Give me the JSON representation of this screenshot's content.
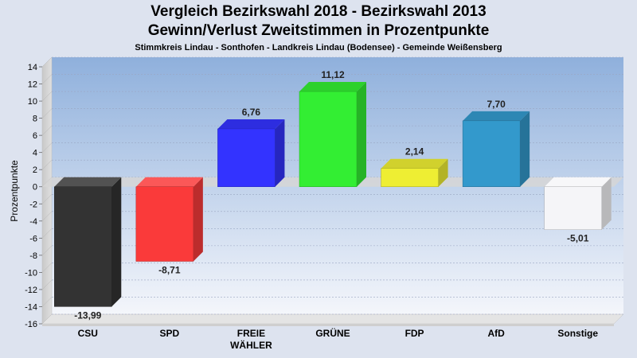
{
  "header": {
    "title_line1": "Vergleich Bezirkswahl 2018 - Bezirkswahl 2013",
    "title_line2": "Gewinn/Verlust Zweitstimmen in Prozentpunkte",
    "subtitle": "Stimmkreis Lindau - Sonthofen - Landkreis Lindau (Bodensee) - Gemeinde Weißensberg"
  },
  "chart_data": {
    "type": "bar",
    "title": "Vergleich Bezirkswahl 2018 - Bezirkswahl 2013 / Gewinn/Verlust Zweitstimmen in Prozentpunkte",
    "subtitle": "Stimmkreis Lindau - Sonthofen - Landkreis Lindau (Bodensee) - Gemeinde Weißensberg",
    "xlabel": "",
    "ylabel": "Prozentpunkte",
    "ylim": [
      -16,
      14
    ],
    "yticks": [
      14,
      12,
      10,
      8,
      6,
      4,
      2,
      0,
      -2,
      -4,
      -6,
      -8,
      -10,
      -12,
      -14,
      -16
    ],
    "grid": true,
    "categories": [
      "CSU",
      "SPD",
      "FREIE WÄHLER",
      "GRÜNE",
      "FDP",
      "AfD",
      "Sonstige"
    ],
    "category_lines": [
      [
        "CSU"
      ],
      [
        "SPD"
      ],
      [
        "FREIE",
        "WÄHLER"
      ],
      [
        "GRÜNE"
      ],
      [
        "FDP"
      ],
      [
        "AfD"
      ],
      [
        "Sonstige"
      ]
    ],
    "values": [
      -13.99,
      -8.71,
      6.76,
      11.12,
      2.14,
      7.7,
      -5.01
    ],
    "value_labels": [
      "-13,99",
      "-8,71",
      "6,76",
      "11,12",
      "2,14",
      "7,70",
      "-5,01"
    ],
    "colors": [
      "#333333",
      "#fa3a3a",
      "#3333ff",
      "#33ee33",
      "#eeee33",
      "#3399cc",
      "#f5f5f8"
    ]
  }
}
